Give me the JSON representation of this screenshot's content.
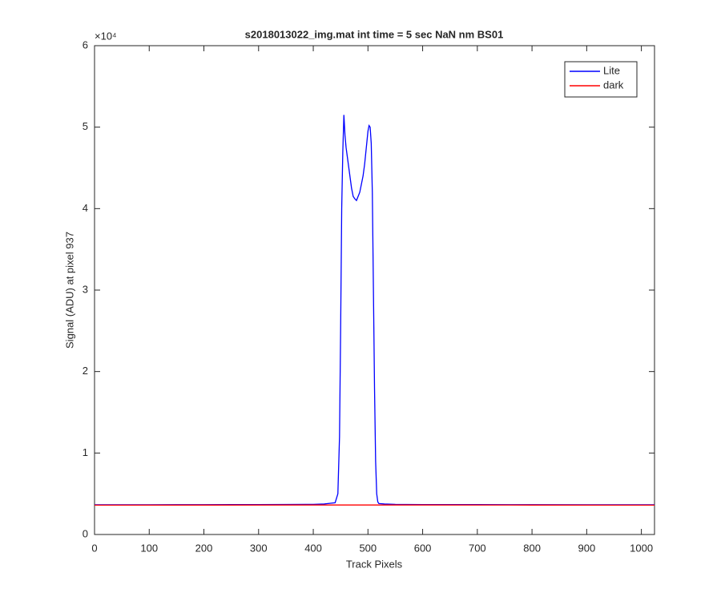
{
  "chart_data": {
    "type": "line",
    "title": "s2018013022_img.mat int time = 5 sec  NaN nm BS01",
    "x_label": "Track Pixels",
    "y_label": "Signal (ADU) at pixel 937",
    "y_scale_label": "×10⁴",
    "xlim": [
      0,
      1024
    ],
    "xticks": [
      0,
      100,
      200,
      300,
      400,
      500,
      600,
      700,
      800,
      900,
      1000
    ],
    "ylim": [
      0,
      60000
    ],
    "yticks": [
      {
        "value": 0,
        "label": "0"
      },
      {
        "value": 10000,
        "label": "1"
      },
      {
        "value": 20000,
        "label": "2"
      },
      {
        "value": 30000,
        "label": "3"
      },
      {
        "value": 40000,
        "label": "4"
      },
      {
        "value": 50000,
        "label": "5"
      },
      {
        "value": 60000,
        "label": "6"
      }
    ],
    "grid": false,
    "legend": "top-right",
    "series": [
      {
        "name": "Lite",
        "color": "#0000ff",
        "x": [
          0,
          50,
          100,
          150,
          200,
          250,
          300,
          350,
          400,
          420,
          440,
          445,
          448,
          450,
          452,
          454,
          456,
          458,
          460,
          462,
          465,
          468,
          470,
          473,
          476,
          479,
          482,
          485,
          488,
          491,
          494,
          497,
          500,
          502,
          504,
          506,
          508,
          510,
          512,
          514,
          516,
          518,
          520,
          530,
          550,
          600,
          700,
          800,
          900,
          1000,
          1024
        ],
        "values": [
          3650,
          3650,
          3650,
          3660,
          3660,
          3670,
          3680,
          3690,
          3700,
          3750,
          3900,
          5000,
          12000,
          25000,
          40000,
          47000,
          51500,
          49000,
          47500,
          46500,
          45000,
          43500,
          42500,
          41500,
          41200,
          41000,
          41500,
          42000,
          43000,
          44000,
          45500,
          47500,
          49500,
          50200,
          50000,
          48000,
          42000,
          30000,
          18000,
          9000,
          5000,
          4000,
          3800,
          3750,
          3700,
          3680,
          3670,
          3660,
          3650,
          3650,
          3650
        ]
      },
      {
        "name": "dark",
        "color": "#ff0000",
        "x": [
          0,
          200,
          400,
          600,
          800,
          1024
        ],
        "values": [
          3600,
          3610,
          3620,
          3620,
          3610,
          3600
        ]
      }
    ]
  }
}
